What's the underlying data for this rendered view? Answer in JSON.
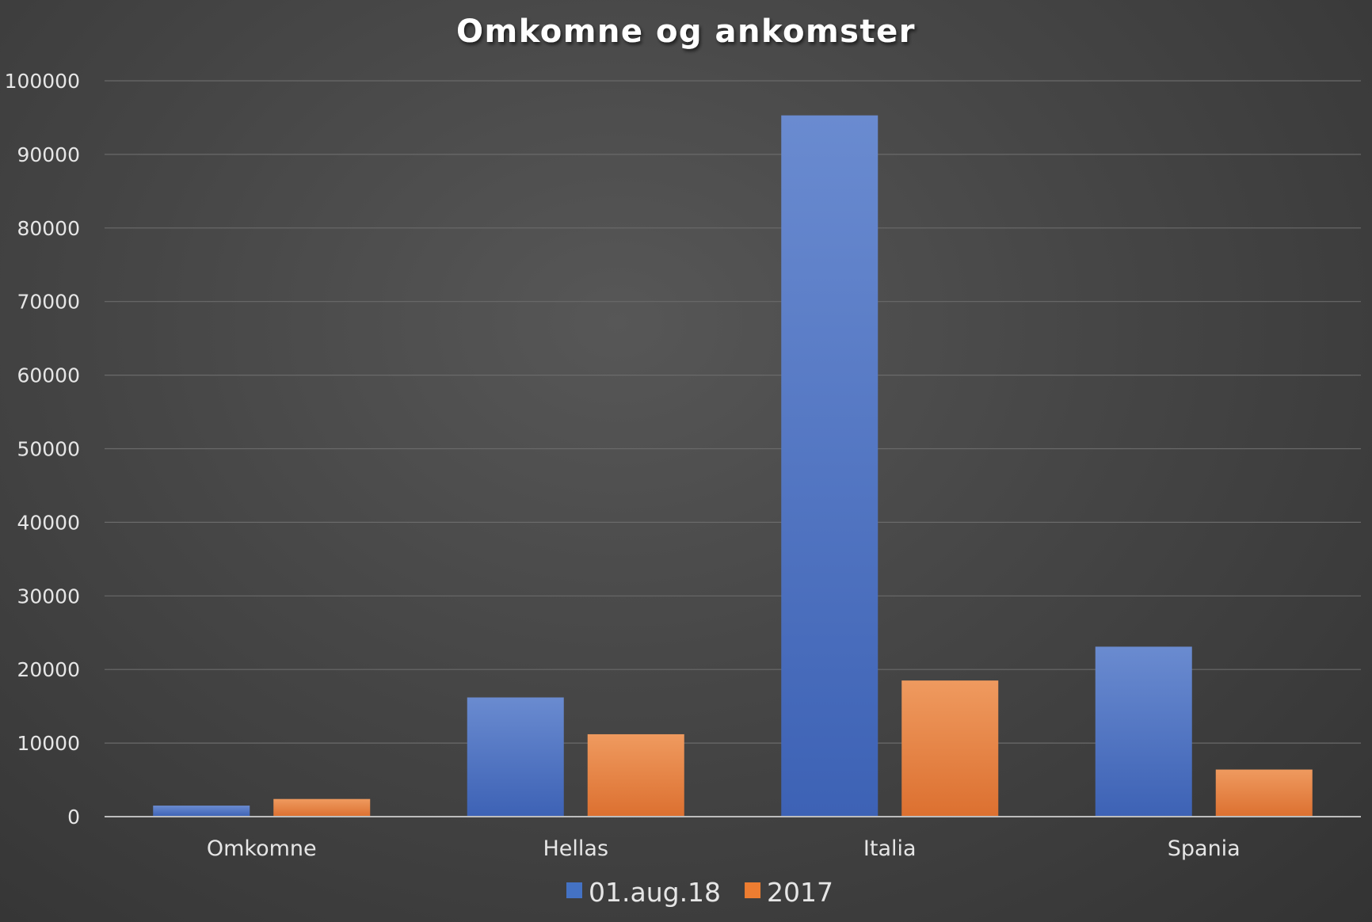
{
  "chart_data": {
    "type": "bar",
    "title": "Omkomne og ankomster",
    "xlabel": "",
    "ylabel": "",
    "categories": [
      "Omkomne",
      "Hellas",
      "Italia",
      "Spania"
    ],
    "series": [
      {
        "name": "01.aug.18",
        "values": [
          1500,
          16200,
          95300,
          23100
        ],
        "color": "#4472c4"
      },
      {
        "name": "2017",
        "values": [
          2400,
          11200,
          18500,
          6400
        ],
        "color": "#ed7d31"
      }
    ],
    "ylim": [
      0,
      100000
    ],
    "yticks": [
      0,
      10000,
      20000,
      30000,
      40000,
      50000,
      60000,
      70000,
      80000,
      90000,
      100000
    ],
    "ytick_labels": [
      "0",
      "10000",
      "20000",
      "30000",
      "40000",
      "50000",
      "60000",
      "70000",
      "80000",
      "90000",
      "100000"
    ],
    "grid": true,
    "legend_position": "bottom",
    "background_color": "#404040"
  }
}
